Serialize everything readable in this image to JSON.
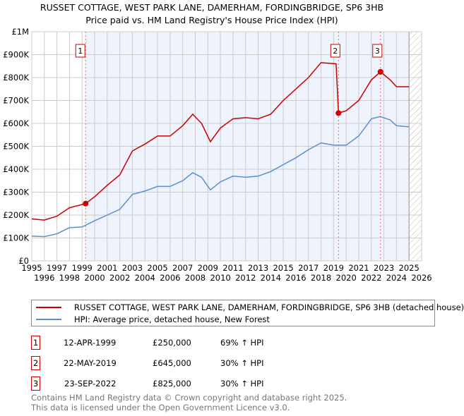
{
  "title_line1": "RUSSET COTTAGE, WEST PARK LANE, DAMERHAM, FORDINGBRIDGE, SP6 3HB",
  "title_line2": "Price paid vs. HM Land Registry's House Price Index (HPI)",
  "chart_data": {
    "type": "line",
    "title": "RUSSET COTTAGE, WEST PARK LANE, DAMERHAM, FORDINGBRIDGE, SP6 3HB - Price paid vs. HM Land Registry's House Price Index (HPI)",
    "xlim": [
      1995,
      2026
    ],
    "ylim": [
      0,
      1000000
    ],
    "x_ticks": [
      "1995",
      "1996",
      "1997",
      "1998",
      "1999",
      "2000",
      "2001",
      "2002",
      "2003",
      "2004",
      "2005",
      "2006",
      "2007",
      "2008",
      "2009",
      "2010",
      "2011",
      "2012",
      "2013",
      "2014",
      "2015",
      "2016",
      "2017",
      "2018",
      "2019",
      "2020",
      "2021",
      "2022",
      "2023",
      "2024",
      "2025",
      "2026"
    ],
    "y_ticks": [
      {
        "v": 0,
        "l": "£0"
      },
      {
        "v": 100000,
        "l": "£100K"
      },
      {
        "v": 200000,
        "l": "£200K"
      },
      {
        "v": 300000,
        "l": "£300K"
      },
      {
        "v": 400000,
        "l": "£400K"
      },
      {
        "v": 500000,
        "l": "£500K"
      },
      {
        "v": 600000,
        "l": "£600K"
      },
      {
        "v": 700000,
        "l": "£700K"
      },
      {
        "v": 800000,
        "l": "£800K"
      },
      {
        "v": 900000,
        "l": "£900K"
      },
      {
        "v": 1000000,
        "l": "£1M"
      }
    ],
    "grid": true,
    "shaded_range": [
      1999.28,
      2025.0
    ],
    "series": [
      {
        "name": "RUSSET COTTAGE, WEST PARK LANE, DAMERHAM, FORDINGBRIDGE, SP6 3HB (detached house)",
        "color": "#cc0000",
        "x": [
          1995,
          1996,
          1997,
          1998,
          1999.28,
          2000,
          2001,
          2002,
          2003,
          2004,
          2005,
          2006,
          2007,
          2007.8,
          2008.5,
          2009.2,
          2010,
          2011,
          2012,
          2013,
          2014,
          2015,
          2016,
          2017,
          2018,
          2019.2,
          2019.39,
          2020,
          2021,
          2022,
          2022.73,
          2023.5,
          2024,
          2025
        ],
        "y": [
          183000,
          178000,
          195000,
          232000,
          250000,
          280000,
          330000,
          375000,
          480000,
          510000,
          545000,
          545000,
          590000,
          640000,
          600000,
          520000,
          580000,
          620000,
          625000,
          620000,
          640000,
          700000,
          750000,
          800000,
          865000,
          860000,
          645000,
          655000,
          700000,
          790000,
          825000,
          790000,
          760000,
          760000
        ]
      },
      {
        "name": "HPI: Average price, detached house, New Forest",
        "color": "#5b8fd0",
        "x": [
          1995,
          1996,
          1997,
          1998,
          1999,
          2000,
          2001,
          2002,
          2003,
          2004,
          2005,
          2006,
          2007,
          2007.8,
          2008.5,
          2009.2,
          2010,
          2011,
          2012,
          2013,
          2014,
          2015,
          2016,
          2017,
          2018,
          2019,
          2020,
          2021,
          2022,
          2022.7,
          2023.5,
          2024,
          2025
        ],
        "y": [
          108000,
          106000,
          118000,
          145000,
          148000,
          175000,
          200000,
          225000,
          290000,
          305000,
          325000,
          325000,
          350000,
          385000,
          365000,
          310000,
          345000,
          370000,
          365000,
          370000,
          390000,
          420000,
          450000,
          485000,
          515000,
          505000,
          505000,
          545000,
          620000,
          630000,
          615000,
          590000,
          585000
        ]
      }
    ],
    "annotations": [
      {
        "label": "1",
        "x": 1999.28,
        "y": 250000
      },
      {
        "label": "2",
        "x": 2019.39,
        "y": 645000
      },
      {
        "label": "3",
        "x": 2022.73,
        "y": 825000
      }
    ]
  },
  "legend": {
    "red": "RUSSET COTTAGE, WEST PARK LANE, DAMERHAM, FORDINGBRIDGE, SP6 3HB (detached house)",
    "blue": "HPI: Average price, detached house, New Forest"
  },
  "sales": [
    {
      "num": "1",
      "date": "12-APR-1999",
      "price": "£250,000",
      "hpi": "69% ↑ HPI"
    },
    {
      "num": "2",
      "date": "22-MAY-2019",
      "price": "£645,000",
      "hpi": "30% ↑ HPI"
    },
    {
      "num": "3",
      "date": "23-SEP-2022",
      "price": "£825,000",
      "hpi": "30% ↑ HPI"
    }
  ],
  "footer_line1": "Contains HM Land Registry data © Crown copyright and database right 2025.",
  "footer_line2": "This data is licensed under the Open Government Licence v3.0."
}
